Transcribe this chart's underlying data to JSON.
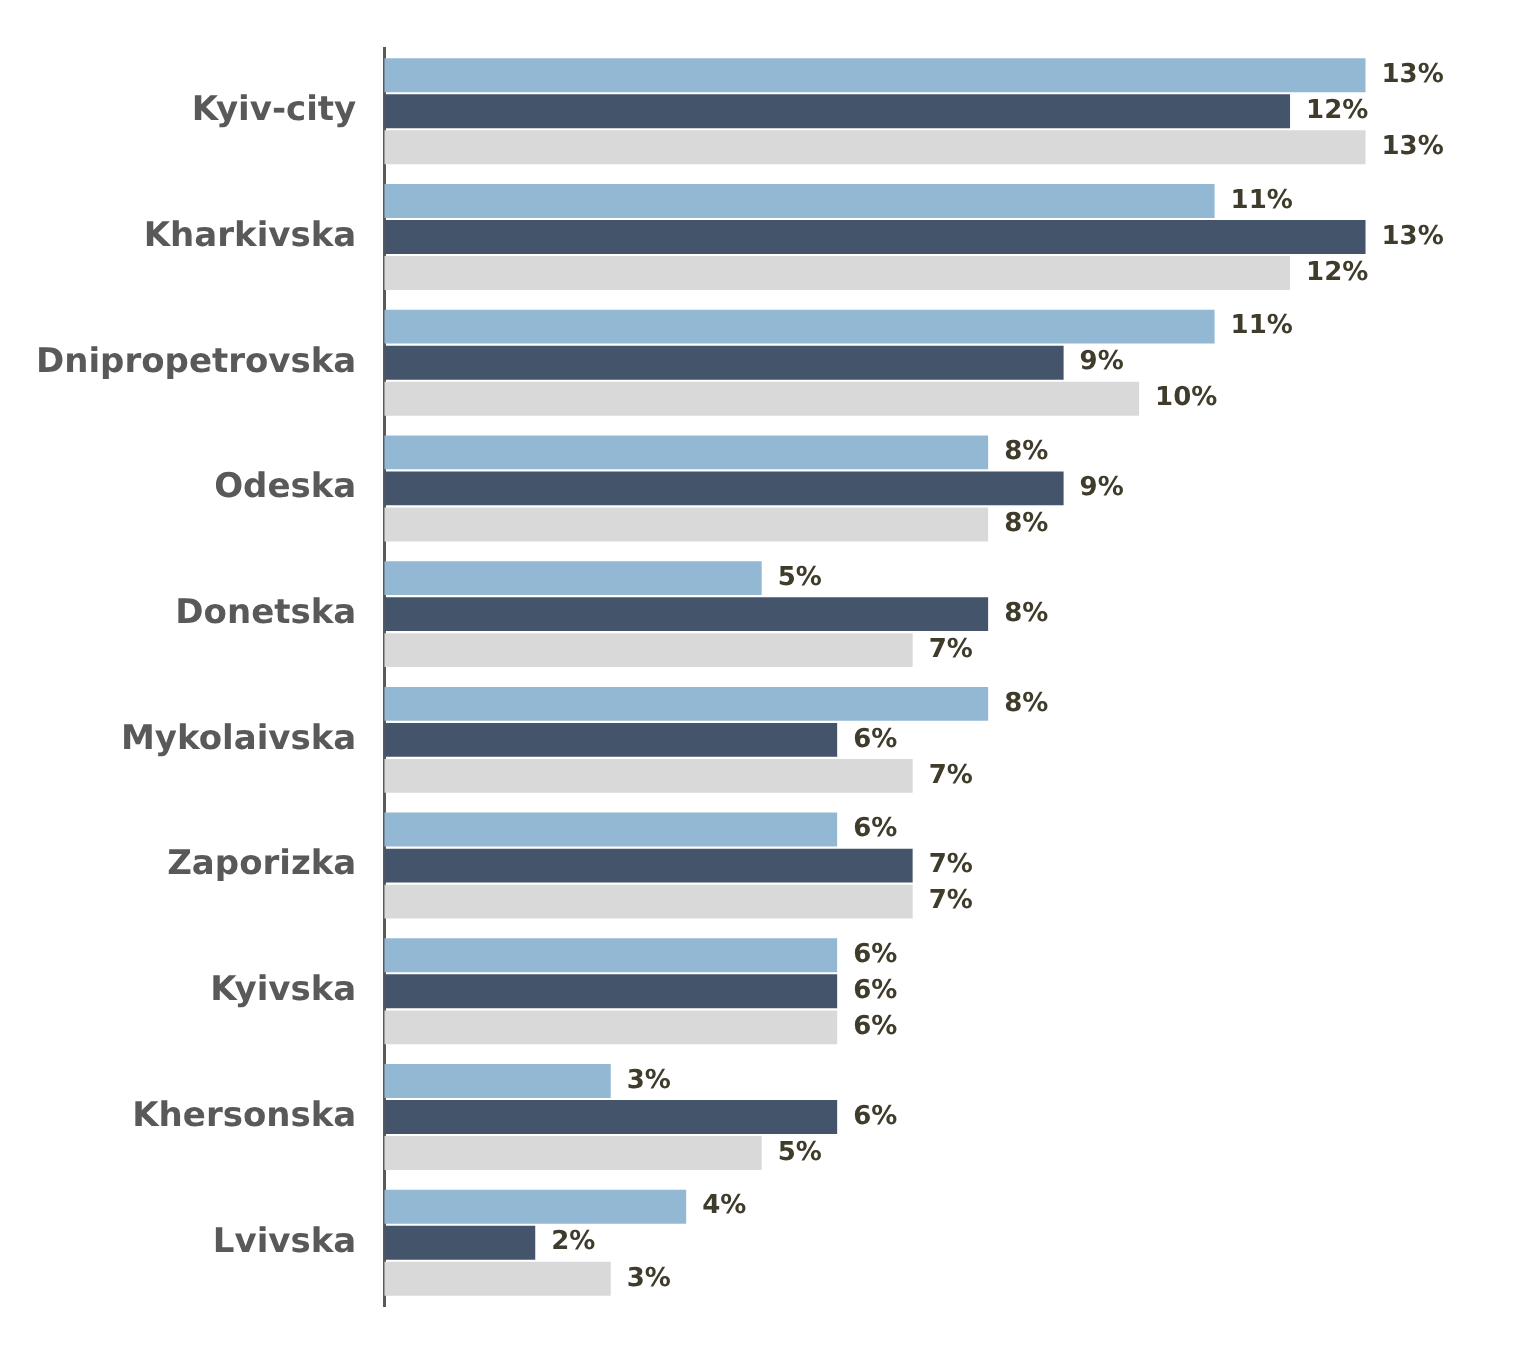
{
  "chart_data": {
    "type": "bar",
    "orientation": "horizontal",
    "categories": [
      "Kyiv-city",
      "Kharkivska",
      "Dnipropetrovska",
      "Odeska",
      "Donetska",
      "Mykolaivska",
      "Zaporizka",
      "Kyivska",
      "Khersonska",
      "Lvivska"
    ],
    "series": [
      {
        "color": "#93b8d3",
        "values": [
          13,
          11,
          11,
          8,
          5,
          8,
          6,
          6,
          3,
          4
        ],
        "value_labels": [
          "13%",
          "11%",
          "11%",
          "8%",
          "5%",
          "8%",
          "6%",
          "6%",
          "3%",
          "4%"
        ]
      },
      {
        "color": "#44546a",
        "values": [
          12,
          13,
          9,
          9,
          8,
          6,
          7,
          6,
          6,
          2
        ],
        "value_labels": [
          "12%",
          "13%",
          "9%",
          "9%",
          "8%",
          "6%",
          "7%",
          "6%",
          "6%",
          "2%"
        ]
      },
      {
        "color": "#d9d9d9",
        "values": [
          13,
          12,
          10,
          8,
          7,
          7,
          7,
          6,
          5,
          3
        ],
        "value_labels": [
          "13%",
          "12%",
          "10%",
          "8%",
          "7%",
          "7%",
          "7%",
          "6%",
          "5%",
          "3%"
        ]
      }
    ],
    "grid": false,
    "legend": false
  }
}
